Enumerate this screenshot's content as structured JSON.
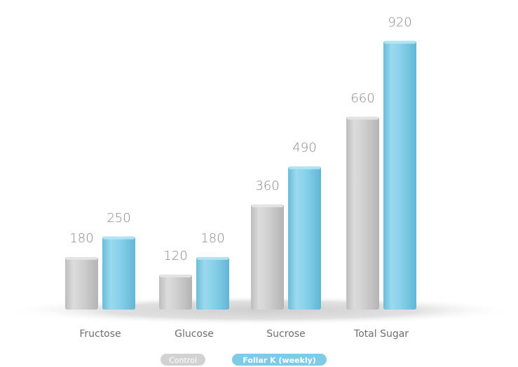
{
  "chart_data": {
    "type": "bar",
    "categories": [
      "Fructose",
      "Glucose",
      "Sucrose",
      "Total Sugar"
    ],
    "series": [
      {
        "name": "Control",
        "values": [
          180,
          120,
          360,
          660
        ]
      },
      {
        "name": "Foliar K (weekly)",
        "values": [
          250,
          180,
          490,
          920
        ]
      }
    ],
    "data_labels": {
      "control": [
        "180",
        "120",
        "360",
        "660"
      ],
      "foliar": [
        "250",
        "180",
        "490",
        "920"
      ]
    },
    "ylim": [
      0,
      920
    ],
    "grid": false,
    "legend_placement": "bottom-center",
    "colors": {
      "control": "#d2d2d2",
      "foliar": "#7dcbe6",
      "label_text": "#8a8a8a"
    }
  },
  "legend": {
    "control_label": "Control",
    "foliar_label": "Foliar K (weekly)"
  }
}
